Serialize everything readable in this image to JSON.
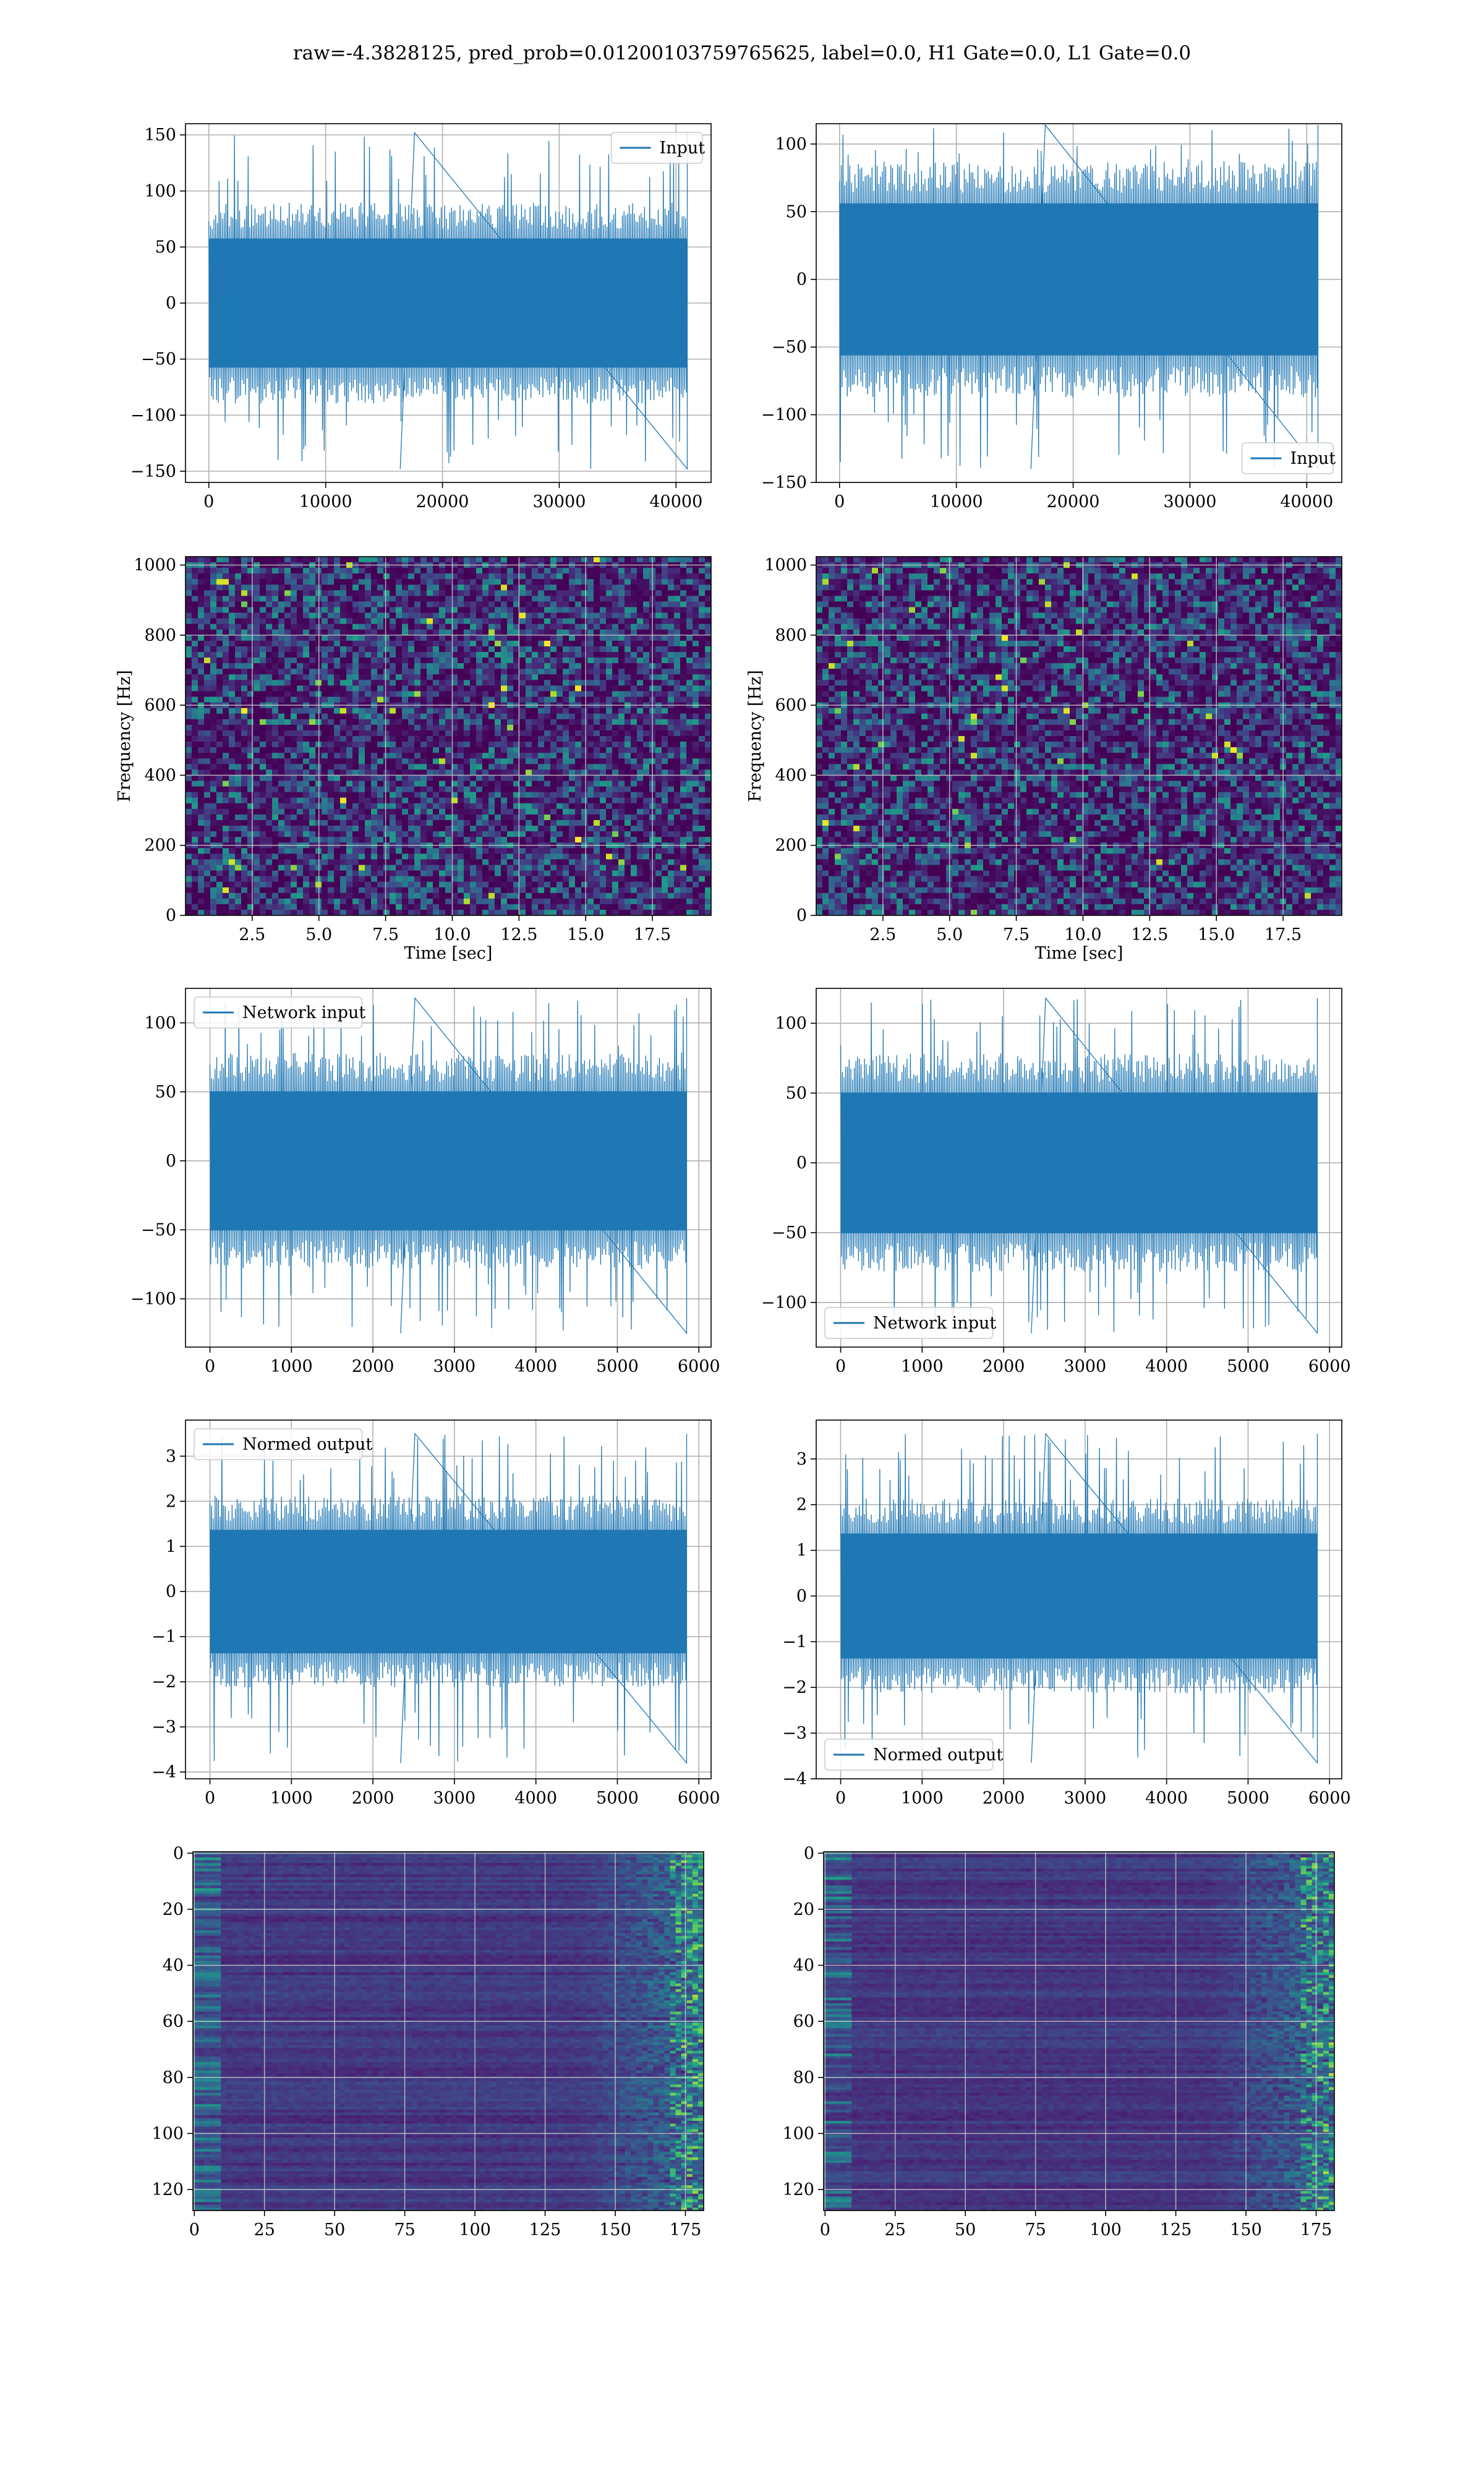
{
  "figure": {
    "title": "raw=-4.3828125, pred_prob=0.01200103759765625, label=0.0, H1 Gate=0.0, L1 Gate=0.0",
    "colors": {
      "line": "#1f77b4",
      "grid": "#b0b0b0",
      "viridis_low": "#440154",
      "viridis_mid": "#21918c",
      "viridis_high": "#fde725"
    }
  },
  "chart_data": [
    {
      "id": "raw-h1",
      "type": "line",
      "grid": true,
      "legend_position": "upper right",
      "series": [
        {
          "name": "Input",
          "color": "#1f77b4",
          "kind": "noise",
          "n_samples": 40960,
          "center": 0,
          "band": 80,
          "peak_max": 152,
          "peak_min": -148
        }
      ],
      "xlim": [
        -2000,
        43000
      ],
      "ylim": [
        -160,
        160
      ],
      "xticks": [
        0,
        10000,
        20000,
        30000,
        40000
      ],
      "yticks": [
        -150,
        -100,
        -50,
        0,
        50,
        100,
        150
      ],
      "xticklabels": [
        "0",
        "10000",
        "20000",
        "30000",
        "40000"
      ],
      "yticklabels": [
        "−150",
        "−100",
        "−50",
        "0",
        "50",
        "100",
        "150"
      ],
      "xlabel": "",
      "ylabel": ""
    },
    {
      "id": "raw-l1",
      "type": "line",
      "grid": true,
      "legend_position": "lower right",
      "series": [
        {
          "name": "Input",
          "color": "#1f77b4",
          "kind": "noise",
          "n_samples": 40960,
          "center": 0,
          "band": 78,
          "peak_max": 114,
          "peak_min": -140
        }
      ],
      "xlim": [
        -2000,
        43000
      ],
      "ylim": [
        -150,
        115
      ],
      "xticks": [
        0,
        10000,
        20000,
        30000,
        40000
      ],
      "yticks": [
        -150,
        -100,
        -50,
        0,
        50,
        100
      ],
      "xticklabels": [
        "0",
        "10000",
        "20000",
        "30000",
        "40000"
      ],
      "yticklabels": [
        "−150",
        "−100",
        "−50",
        "0",
        "50",
        "100"
      ],
      "xlabel": "",
      "ylabel": ""
    },
    {
      "id": "spec-h1",
      "type": "heatmap",
      "grid": true,
      "colormap": "viridis",
      "xlim": [
        0,
        19.7
      ],
      "ylim": [
        0,
        1024
      ],
      "xticks": [
        2.5,
        5.0,
        7.5,
        10.0,
        12.5,
        15.0,
        17.5
      ],
      "yticks": [
        0,
        200,
        400,
        600,
        800,
        1000
      ],
      "xticklabels": [
        "2.5",
        "5.0",
        "7.5",
        "10.0",
        "12.5",
        "15.0",
        "17.5"
      ],
      "yticklabels": [
        "0",
        "200",
        "400",
        "600",
        "800",
        "1000"
      ],
      "xlabel": "Time [sec]",
      "ylabel": "Frequency [Hz]"
    },
    {
      "id": "spec-l1",
      "type": "heatmap",
      "grid": true,
      "colormap": "viridis",
      "xlim": [
        0,
        19.7
      ],
      "ylim": [
        0,
        1024
      ],
      "xticks": [
        2.5,
        5.0,
        7.5,
        10.0,
        12.5,
        15.0,
        17.5
      ],
      "yticks": [
        0,
        200,
        400,
        600,
        800,
        1000
      ],
      "xticklabels": [
        "2.5",
        "5.0",
        "7.5",
        "10.0",
        "12.5",
        "15.0",
        "17.5"
      ],
      "yticklabels": [
        "0",
        "200",
        "400",
        "600",
        "800",
        "1000"
      ],
      "xlabel": "Time [sec]",
      "ylabel": "Frequency [Hz]"
    },
    {
      "id": "net-h1",
      "type": "line",
      "grid": true,
      "legend_position": "upper left",
      "series": [
        {
          "name": "Network input",
          "color": "#1f77b4",
          "kind": "noise",
          "n_samples": 5850,
          "center": 0,
          "band": 70,
          "peak_max": 118,
          "peak_min": -125
        }
      ],
      "xlim": [
        -300,
        6150
      ],
      "ylim": [
        -135,
        125
      ],
      "xticks": [
        0,
        1000,
        2000,
        3000,
        4000,
        5000,
        6000
      ],
      "yticks": [
        -100,
        -50,
        0,
        50,
        100
      ],
      "xticklabels": [
        "0",
        "1000",
        "2000",
        "3000",
        "4000",
        "5000",
        "6000"
      ],
      "yticklabels": [
        "−100",
        "−50",
        "0",
        "50",
        "100"
      ],
      "xlabel": "",
      "ylabel": ""
    },
    {
      "id": "net-l1",
      "type": "line",
      "grid": true,
      "legend_position": "lower left",
      "series": [
        {
          "name": "Network input",
          "color": "#1f77b4",
          "kind": "noise",
          "n_samples": 5850,
          "center": 0,
          "band": 70,
          "peak_max": 118,
          "peak_min": -122
        }
      ],
      "xlim": [
        -300,
        6150
      ],
      "ylim": [
        -132,
        125
      ],
      "xticks": [
        0,
        1000,
        2000,
        3000,
        4000,
        5000,
        6000
      ],
      "yticks": [
        -100,
        -50,
        0,
        50,
        100
      ],
      "xticklabels": [
        "0",
        "1000",
        "2000",
        "3000",
        "4000",
        "5000",
        "6000"
      ],
      "yticklabels": [
        "−100",
        "−50",
        "0",
        "50",
        "100"
      ],
      "xlabel": "",
      "ylabel": ""
    },
    {
      "id": "norm-h1",
      "type": "line",
      "grid": true,
      "legend_position": "upper left",
      "series": [
        {
          "name": "Normed output",
          "color": "#1f77b4",
          "kind": "noise",
          "n_samples": 5850,
          "center": 0,
          "band": 1.9,
          "peak_max": 3.5,
          "peak_min": -3.8
        }
      ],
      "xlim": [
        -300,
        6150
      ],
      "ylim": [
        -4.15,
        3.8
      ],
      "xticks": [
        0,
        1000,
        2000,
        3000,
        4000,
        5000,
        6000
      ],
      "yticks": [
        -4,
        -3,
        -2,
        -1,
        0,
        1,
        2,
        3
      ],
      "xticklabels": [
        "0",
        "1000",
        "2000",
        "3000",
        "4000",
        "5000",
        "6000"
      ],
      "yticklabels": [
        "−4",
        "−3",
        "−2",
        "−1",
        "0",
        "1",
        "2",
        "3"
      ],
      "xlabel": "",
      "ylabel": ""
    },
    {
      "id": "norm-l1",
      "type": "line",
      "grid": true,
      "legend_position": "lower left",
      "series": [
        {
          "name": "Normed output",
          "color": "#1f77b4",
          "kind": "noise",
          "n_samples": 5850,
          "center": 0,
          "band": 1.9,
          "peak_max": 3.55,
          "peak_min": -3.65
        }
      ],
      "xlim": [
        -300,
        6150
      ],
      "ylim": [
        -4.0,
        3.85
      ],
      "xticks": [
        0,
        1000,
        2000,
        3000,
        4000,
        5000,
        6000
      ],
      "yticks": [
        -4,
        -3,
        -2,
        -1,
        0,
        1,
        2,
        3
      ],
      "xticklabels": [
        "0",
        "1000",
        "2000",
        "3000",
        "4000",
        "5000",
        "6000"
      ],
      "yticklabels": [
        "−4",
        "−3",
        "−2",
        "−1",
        "0",
        "1",
        "2",
        "3"
      ],
      "xlabel": "",
      "ylabel": ""
    },
    {
      "id": "feat-h1",
      "type": "heatmap",
      "grid": true,
      "colormap": "viridis",
      "y_inverted": true,
      "xlim": [
        -0.5,
        181.5
      ],
      "ylim": [
        -0.5,
        127.5
      ],
      "xticks": [
        0,
        25,
        50,
        75,
        100,
        125,
        150,
        175
      ],
      "yticks": [
        0,
        20,
        40,
        60,
        80,
        100,
        120
      ],
      "xticklabels": [
        "0",
        "25",
        "50",
        "75",
        "100",
        "125",
        "150",
        "175"
      ],
      "yticklabels": [
        "0",
        "20",
        "40",
        "60",
        "80",
        "100",
        "120"
      ],
      "xlabel": "",
      "ylabel": ""
    },
    {
      "id": "feat-l1",
      "type": "heatmap",
      "grid": true,
      "colormap": "viridis",
      "y_inverted": true,
      "xlim": [
        -0.5,
        181.5
      ],
      "ylim": [
        -0.5,
        127.5
      ],
      "xticks": [
        0,
        25,
        50,
        75,
        100,
        125,
        150,
        175
      ],
      "yticks": [
        0,
        20,
        40,
        60,
        80,
        100,
        120
      ],
      "xticklabels": [
        "0",
        "25",
        "50",
        "75",
        "100",
        "125",
        "150",
        "175"
      ],
      "yticklabels": [
        "0",
        "20",
        "40",
        "60",
        "80",
        "100",
        "120"
      ],
      "xlabel": "",
      "ylabel": ""
    }
  ]
}
